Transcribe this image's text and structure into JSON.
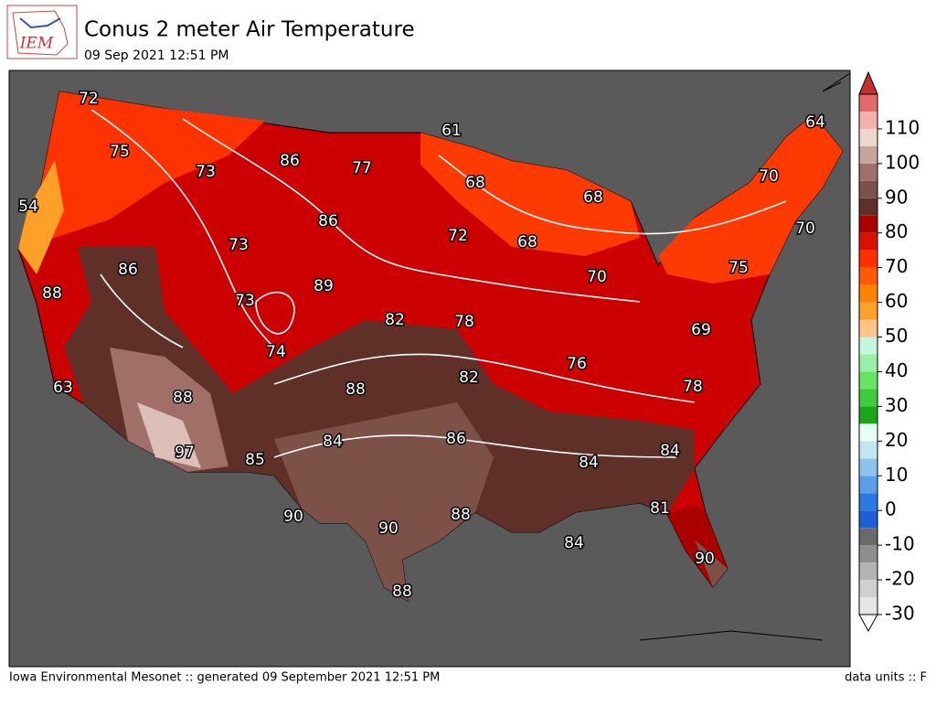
{
  "logo_text": "IEM",
  "title": "Conus 2 meter Air Temperature",
  "subtitle": "09 Sep 2021 12:51 PM",
  "station_labels": [
    72,
    75,
    73,
    86,
    77,
    61,
    54,
    86,
    73,
    68,
    68,
    64,
    70,
    70,
    72,
    68,
    86,
    88,
    89,
    73,
    70,
    75,
    82,
    78,
    69,
    74,
    76,
    82,
    88,
    78,
    63,
    88,
    86,
    84,
    84,
    84,
    97,
    85,
    81,
    90,
    90,
    88,
    84,
    90,
    88
  ],
  "colorbar": {
    "levels": [
      -30,
      -25,
      -20,
      -15,
      -10,
      -5,
      0,
      5,
      10,
      15,
      20,
      25,
      30,
      35,
      40,
      45,
      50,
      55,
      60,
      65,
      70,
      75,
      80,
      85,
      90,
      95,
      100,
      105,
      110,
      115,
      120
    ],
    "colors": [
      "#e6e6e6",
      "#cfcfcf",
      "#b4b4b4",
      "#8e8e8e",
      "#6a6a6a",
      "#1f5fd6",
      "#2b7ae2",
      "#5a9ee8",
      "#8ec2ec",
      "#c4e6f0",
      "#e8fff6",
      "#1aa51a",
      "#3ccc3c",
      "#66e466",
      "#9af0a8",
      "#c4f8dc",
      "#ffc488",
      "#ffa028",
      "#ff8200",
      "#ff5a00",
      "#ff3000",
      "#dc1000",
      "#aa0000",
      "#5e3028",
      "#7c5248",
      "#a07068",
      "#c8a49c",
      "#ecd6ce",
      "#f4b0ac",
      "#e46a6a"
    ],
    "ticks": [
      -30,
      -20,
      -10,
      0,
      10,
      20,
      30,
      40,
      50,
      60,
      70,
      80,
      90,
      100,
      110
    ]
  },
  "footer_left": "Iowa Environmental Mesonet :: generated 09 September 2021 12:51 PM",
  "footer_right": "data units :: F"
}
